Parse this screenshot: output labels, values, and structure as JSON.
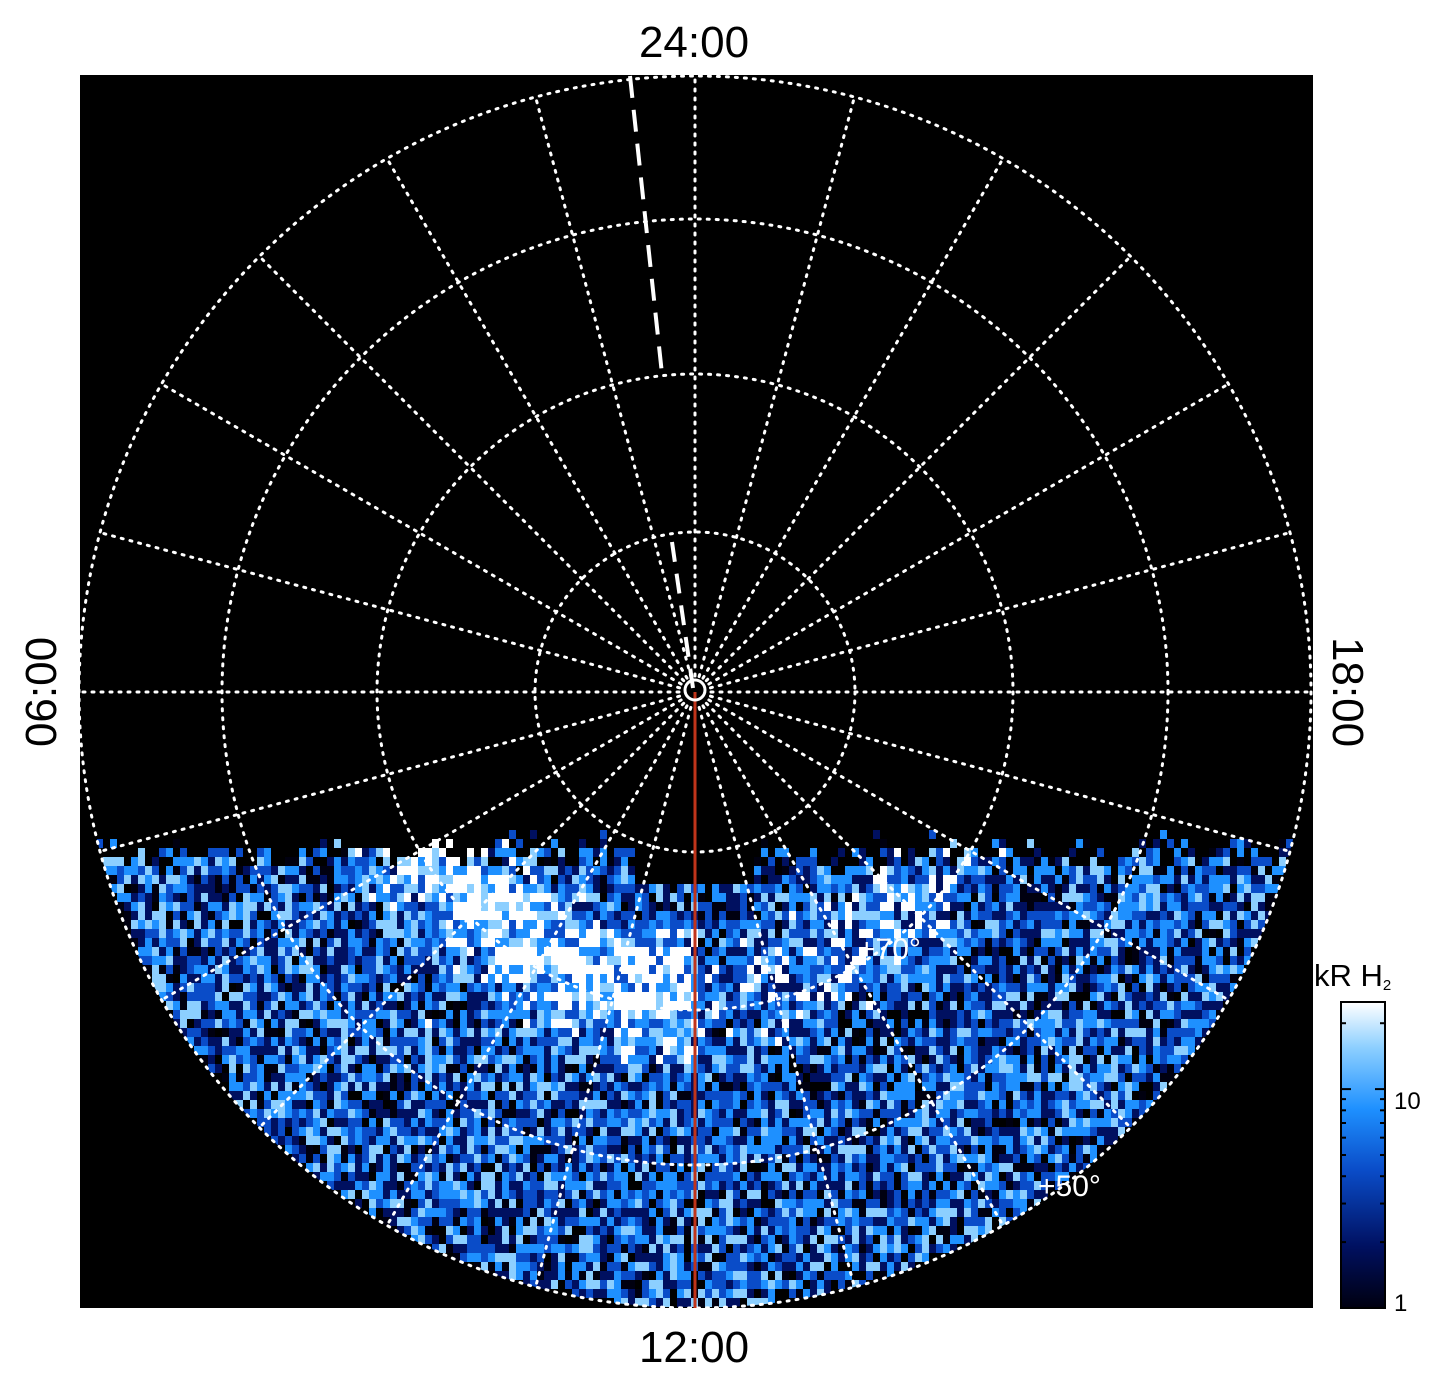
{
  "chart_data": {
    "type": "heatmap",
    "projection": "polar",
    "title": "",
    "local_time_labels": {
      "top": "24:00",
      "bottom": "12:00",
      "left": "06:00",
      "right": "18:00"
    },
    "latitude_labels": [
      "+70°",
      "+50°"
    ],
    "colorbar": {
      "label": "kR H₂",
      "label_text": "kR H",
      "label_subscript": "2",
      "scale": "log",
      "range": [
        1,
        25
      ],
      "tick_labels": [
        "1",
        "10"
      ],
      "colors": [
        "#000010",
        "#001060",
        "#0a4cc8",
        "#1e90ff",
        "#8ccfff",
        "#ffffff"
      ]
    },
    "grid": "on",
    "background": "#000000",
    "emission_region": "dayside, below the horizon line across the lower part of the disk",
    "markers": {
      "dashed_line": "white dashed meridian from pole toward 24:00",
      "solid_line": "red meridian from pole to 12:00",
      "line_color": "#c0341a"
    }
  }
}
